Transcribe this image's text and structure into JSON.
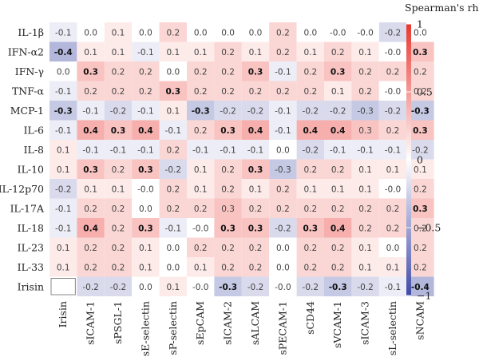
{
  "chart_data": {
    "type": "heatmap",
    "title": "",
    "row_labels": [
      "IL-1β",
      "IFN-α2",
      "IFN-γ",
      "TNF-α",
      "MCP-1",
      "IL-6",
      "IL-8",
      "IL-10",
      "IL-12p70",
      "IL-17A",
      "IL-18",
      "IL-23",
      "IL-33",
      "Irisin"
    ],
    "column_labels": [
      "Irisin",
      "sICAM-1",
      "sPSGL-1",
      "sE-selectin",
      "sP-selectin",
      "sEpCAM",
      "sICAM-2",
      "sALCAM",
      "sPECAM-1",
      "sCD44",
      "sVCAM-1",
      "sICAM-3",
      "sL-selectin",
      "sNCAM"
    ],
    "values": [
      [
        -0.1,
        0.0,
        0.1,
        0.0,
        0.2,
        0.0,
        0.0,
        0.0,
        0.2,
        0.0,
        -0.0,
        -0.0,
        -0.2,
        0.0
      ],
      [
        -0.4,
        0.1,
        0.1,
        -0.1,
        0.1,
        0.1,
        0.2,
        0.1,
        0.2,
        0.1,
        0.2,
        0.1,
        -0.0,
        0.3
      ],
      [
        0.0,
        0.3,
        0.2,
        0.2,
        0.0,
        0.2,
        0.2,
        0.3,
        -0.1,
        0.2,
        0.3,
        0.2,
        0.2,
        0.2
      ],
      [
        -0.1,
        0.2,
        0.2,
        0.2,
        0.3,
        0.2,
        0.2,
        0.2,
        0.2,
        0.2,
        0.1,
        0.2,
        -0.0,
        0.2
      ],
      [
        -0.3,
        -0.1,
        -0.2,
        -0.1,
        0.1,
        -0.3,
        -0.2,
        -0.2,
        -0.1,
        -0.2,
        -0.2,
        -0.3,
        -0.2,
        -0.3
      ],
      [
        -0.1,
        0.4,
        0.3,
        0.4,
        -0.1,
        0.2,
        0.3,
        0.4,
        -0.1,
        0.4,
        0.4,
        0.3,
        0.2,
        0.3
      ],
      [
        0.1,
        -0.1,
        -0.1,
        -0.1,
        0.2,
        -0.1,
        -0.1,
        -0.1,
        0.0,
        -0.2,
        -0.1,
        -0.1,
        -0.1,
        -0.2
      ],
      [
        0.1,
        0.3,
        0.2,
        0.3,
        -0.2,
        0.1,
        0.2,
        0.3,
        -0.3,
        0.2,
        0.2,
        0.1,
        0.1,
        0.1
      ],
      [
        -0.2,
        0.1,
        0.1,
        -0.0,
        0.2,
        0.1,
        0.2,
        0.1,
        0.2,
        0.1,
        0.1,
        0.1,
        -0.0,
        0.2
      ],
      [
        -0.1,
        0.2,
        0.2,
        0.0,
        0.2,
        0.2,
        0.3,
        0.2,
        0.2,
        0.2,
        0.2,
        0.2,
        0.2,
        0.3
      ],
      [
        -0.1,
        0.4,
        0.2,
        0.3,
        -0.1,
        -0.0,
        0.3,
        0.3,
        -0.2,
        0.3,
        0.4,
        0.2,
        0.2,
        0.2
      ],
      [
        0.1,
        0.2,
        0.2,
        0.1,
        0.0,
        0.2,
        0.2,
        0.2,
        0.0,
        0.2,
        0.2,
        0.1,
        0.0,
        0.2
      ],
      [
        0.1,
        0.2,
        0.2,
        0.1,
        0.0,
        0.1,
        0.2,
        0.2,
        0.0,
        0.2,
        0.2,
        0.1,
        0.1,
        0.2
      ],
      [
        null,
        -0.2,
        -0.2,
        0.0,
        0.1,
        -0.0,
        -0.3,
        -0.2,
        -0.0,
        -0.2,
        -0.3,
        -0.2,
        -0.1,
        -0.4
      ]
    ],
    "bold_cells": [
      [
        1,
        0
      ],
      [
        1,
        13
      ],
      [
        2,
        1
      ],
      [
        2,
        7
      ],
      [
        2,
        10
      ],
      [
        3,
        4
      ],
      [
        4,
        0
      ],
      [
        4,
        5
      ],
      [
        4,
        13
      ],
      [
        5,
        1
      ],
      [
        5,
        2
      ],
      [
        5,
        3
      ],
      [
        5,
        6
      ],
      [
        5,
        7
      ],
      [
        5,
        9
      ],
      [
        5,
        10
      ],
      [
        5,
        13
      ],
      [
        7,
        1
      ],
      [
        7,
        3
      ],
      [
        7,
        7
      ],
      [
        9,
        13
      ],
      [
        10,
        1
      ],
      [
        10,
        3
      ],
      [
        10,
        6
      ],
      [
        10,
        7
      ],
      [
        10,
        9
      ],
      [
        10,
        10
      ],
      [
        13,
        6
      ],
      [
        13,
        10
      ],
      [
        13,
        13
      ]
    ],
    "colorbar": {
      "title": "Spearman's rho",
      "range": [
        -1,
        1
      ],
      "ticks": [
        1,
        0.5,
        0,
        -0.5,
        -1
      ],
      "tick_labels": [
        "1",
        "0.5",
        "0",
        "−0.5",
        "−1"
      ]
    },
    "colors": {
      "negative": "#3f4aa6",
      "zero": "#ffffff",
      "positive": "#e8372f",
      "empty_cell_border": "#888888"
    }
  }
}
